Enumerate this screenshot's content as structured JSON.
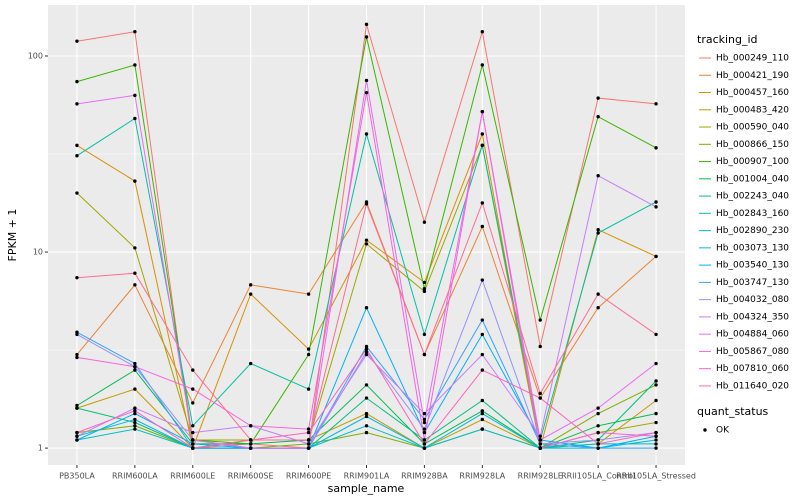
{
  "chart_data": {
    "type": "line",
    "x_label": "sample_name",
    "y_label": "FPKM + 1",
    "log_y": true,
    "grid": true,
    "legend_title": "tracking_id",
    "legend_position": "right",
    "point_legend_title": "quant_status",
    "point_legend_label": "OK",
    "point_color": "#000000",
    "categories": [
      "PB350LA",
      "RRIM600LA",
      "RRIM600LE",
      "RRIM600SE",
      "RRIM600PE",
      "RRIM901LA",
      "RRIM928BA",
      "RRIM928LA",
      "RRIM928LE",
      "RRII105LA_Control",
      "RRII105LA_Stressed"
    ],
    "ylim": [
      0.82,
      182
    ],
    "yticks": [
      1,
      10,
      100
    ],
    "series": [
      {
        "name": "Hb_000249_110",
        "color": "#F8766D",
        "values": [
          119,
          133,
          1.0,
          1.05,
          1.0,
          145,
          14.2,
          133,
          3.3,
          61,
          57
        ]
      },
      {
        "name": "Hb_000421_190",
        "color": "#EA8331",
        "values": [
          3.0,
          6.8,
          1.7,
          6.8,
          6.1,
          18,
          3.0,
          13.5,
          1.8,
          5.2,
          9.5
        ]
      },
      {
        "name": "Hb_000457_160",
        "color": "#D89000",
        "values": [
          35,
          23,
          1.0,
          6.1,
          3.2,
          11.5,
          7.0,
          40,
          1.0,
          13,
          9.5
        ]
      },
      {
        "name": "Hb_000483_420",
        "color": "#C09B00",
        "values": [
          1.6,
          2.0,
          1.0,
          1.1,
          1.1,
          1.5,
          1.0,
          1.4,
          1.0,
          1.05,
          1.75
        ]
      },
      {
        "name": "Hb_000590_040",
        "color": "#A3A500",
        "values": [
          20,
          10.5,
          1.1,
          1.1,
          1.1,
          11,
          6.3,
          35,
          1.0,
          1.2,
          1.35
        ]
      },
      {
        "name": "Hb_000866_150",
        "color": "#7CAE00",
        "values": [
          1.2,
          1.3,
          1.0,
          1.0,
          1.05,
          1.2,
          1.0,
          1.25,
          1.0,
          1.5,
          2.1
        ]
      },
      {
        "name": "Hb_000907_100",
        "color": "#39B600",
        "values": [
          74,
          90,
          1.1,
          1.05,
          3.0,
          125,
          6.5,
          90,
          4.5,
          49,
          34
        ]
      },
      {
        "name": "Hb_001004_040",
        "color": "#00BB4E",
        "values": [
          1.65,
          2.5,
          1.05,
          1.05,
          1.1,
          2.1,
          1.05,
          1.55,
          1.0,
          1.3,
          1.5
        ]
      },
      {
        "name": "Hb_002243_040",
        "color": "#00BF7D",
        "values": [
          1.6,
          1.35,
          1.0,
          1.0,
          1.0,
          1.8,
          1.1,
          1.75,
          1.0,
          1.1,
          2.2
        ]
      },
      {
        "name": "Hb_002843_160",
        "color": "#00C1A3",
        "values": [
          31,
          48,
          1.3,
          2.7,
          2.0,
          40,
          3.8,
          35,
          1.1,
          12.5,
          18
        ]
      },
      {
        "name": "Hb_002890_230",
        "color": "#00BFC4",
        "values": [
          1.1,
          1.25,
          1.0,
          1.0,
          1.0,
          1.3,
          1.0,
          1.25,
          1.0,
          1.05,
          1.05
        ]
      },
      {
        "name": "Hb_003073_130",
        "color": "#00BAE0",
        "values": [
          1.15,
          1.4,
          1.0,
          1.0,
          1.0,
          1.45,
          1.0,
          1.5,
          1.0,
          1.0,
          1.1
        ]
      },
      {
        "name": "Hb_003540_130",
        "color": "#00B0F6",
        "values": [
          1.1,
          1.5,
          1.05,
          1.0,
          1.0,
          5.2,
          1.2,
          3.8,
          1.1,
          1.0,
          1.15
        ]
      },
      {
        "name": "Hb_003747_130",
        "color": "#35A2FF",
        "values": [
          3.9,
          2.7,
          1.0,
          1.0,
          1.0,
          3.3,
          1.4,
          4.5,
          1.05,
          1.0,
          1.0
        ]
      },
      {
        "name": "Hb_004032_080",
        "color": "#9590FF",
        "values": [
          3.8,
          2.6,
          1.1,
          1.0,
          1.0,
          3.1,
          1.25,
          7.2,
          1.05,
          1.1,
          1.2
        ]
      },
      {
        "name": "Hb_004324_350",
        "color": "#C77CFF",
        "values": [
          1.15,
          1.6,
          1.2,
          1.3,
          1.05,
          3.0,
          1.5,
          3.0,
          1.15,
          24.5,
          17
        ]
      },
      {
        "name": "Hb_004884_060",
        "color": "#E76BF3",
        "values": [
          57,
          63,
          1.1,
          1.0,
          1.0,
          75,
          1.35,
          52,
          1.1,
          1.6,
          2.7
        ]
      },
      {
        "name": "Hb_005867_080",
        "color": "#FA62DB",
        "values": [
          2.9,
          2.6,
          2.0,
          1.3,
          1.25,
          65,
          1.1,
          52,
          1.0,
          1.2,
          1.15
        ]
      },
      {
        "name": "Hb_007810_060",
        "color": "#FF62BC",
        "values": [
          1.2,
          1.55,
          1.0,
          1.1,
          1.2,
          3.2,
          1.05,
          2.5,
          1.8,
          1.05,
          1.2
        ]
      },
      {
        "name": "Hb_011640_020",
        "color": "#FF6C91",
        "values": [
          7.4,
          7.8,
          2.5,
          1.1,
          1.1,
          17.6,
          3.0,
          17.8,
          1.9,
          6.1,
          3.8
        ]
      }
    ]
  }
}
